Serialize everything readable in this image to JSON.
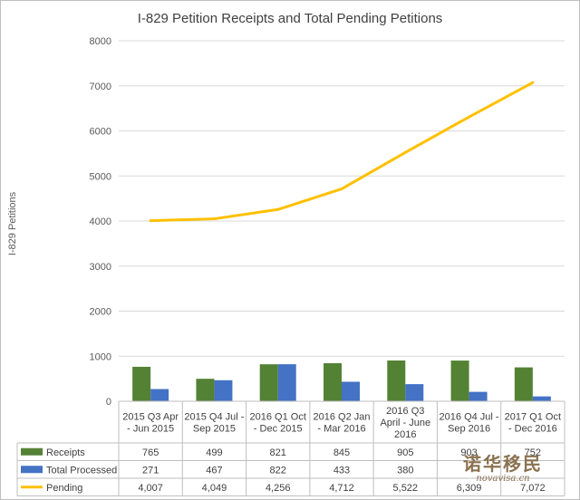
{
  "chart_data": {
    "type": "bar",
    "title": "I-829 Petition Receipts and Total Pending Petitions",
    "ylabel": "I-829 Petitions",
    "ylim": [
      0,
      8000
    ],
    "yticks": [
      "0",
      "1000",
      "2000",
      "3000",
      "4000",
      "5000",
      "6000",
      "7000",
      "8000"
    ],
    "categories": [
      [
        "2015 Q3 Apr",
        "- Jun 2015"
      ],
      [
        "2015 Q4 Jul -",
        "Sep 2015"
      ],
      [
        "2016 Q1 Oct",
        "- Dec 2015"
      ],
      [
        "2016 Q2 Jan",
        "- Mar 2016"
      ],
      [
        "2016 Q3",
        "April - June",
        "2016"
      ],
      [
        "2016 Q4 Jul -",
        "Sep 2016"
      ],
      [
        "2017 Q1 Oct",
        "- Dec 2016"
      ]
    ],
    "series": [
      {
        "name": "Receipts",
        "kind": "bar",
        "color": "#548235",
        "values": [
          765,
          499,
          821,
          845,
          905,
          903,
          752
        ],
        "labels": [
          "765",
          "499",
          "821",
          "845",
          "905",
          "903",
          "752"
        ]
      },
      {
        "name": "Total Processed",
        "kind": "bar",
        "color": "#4472c4",
        "values": [
          271,
          467,
          822,
          433,
          380,
          209,
          108
        ],
        "labels": [
          "271",
          "467",
          "822",
          "433",
          "380",
          "",
          ""
        ]
      },
      {
        "name": "Pending",
        "kind": "line",
        "color": "#ffc000",
        "values": [
          4007,
          4049,
          4256,
          4712,
          5522,
          6309,
          7072
        ],
        "labels": [
          "4,007",
          "4,049",
          "4,256",
          "4,712",
          "5,522",
          "6,309",
          "7,072"
        ]
      }
    ],
    "grid": true,
    "legend": "data-table"
  },
  "watermark": {
    "main": "诺华移民",
    "sub": "novavisa.cn"
  }
}
